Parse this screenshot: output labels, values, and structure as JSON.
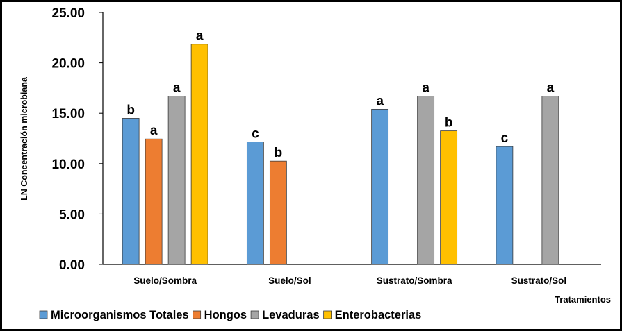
{
  "chart_data": {
    "type": "bar",
    "title": "",
    "xlabel": "Tratamientos",
    "ylabel": "LN Concentración microbiana",
    "ylim": [
      0,
      25
    ],
    "yticks": [
      "0.00",
      "5.00",
      "10.00",
      "15.00",
      "20.00",
      "25.00"
    ],
    "grid": false,
    "legend_position": "bottom",
    "categories": [
      "Suelo/Sombra",
      "Suelo/Sol",
      "Sustrato/Sombra",
      "Sustrato/Sol"
    ],
    "series": [
      {
        "name": "Microorganismos Totales",
        "color": "#5B9BD5",
        "values": [
          14.5,
          12.15,
          15.4,
          11.7
        ],
        "labels": [
          "b",
          "c",
          "a",
          "c"
        ]
      },
      {
        "name": "Hongos",
        "color": "#ED7D31",
        "values": [
          12.45,
          10.25,
          null,
          null
        ],
        "labels": [
          "a",
          "b",
          null,
          null
        ]
      },
      {
        "name": "Levaduras",
        "color": "#A5A5A5",
        "values": [
          16.7,
          null,
          16.7,
          16.7
        ],
        "labels": [
          "a",
          null,
          "a",
          "a"
        ]
      },
      {
        "name": "Enterobacterias",
        "color": "#FFC000",
        "values": [
          21.85,
          null,
          13.25,
          null
        ],
        "labels": [
          "a",
          null,
          "b",
          null
        ]
      }
    ]
  }
}
